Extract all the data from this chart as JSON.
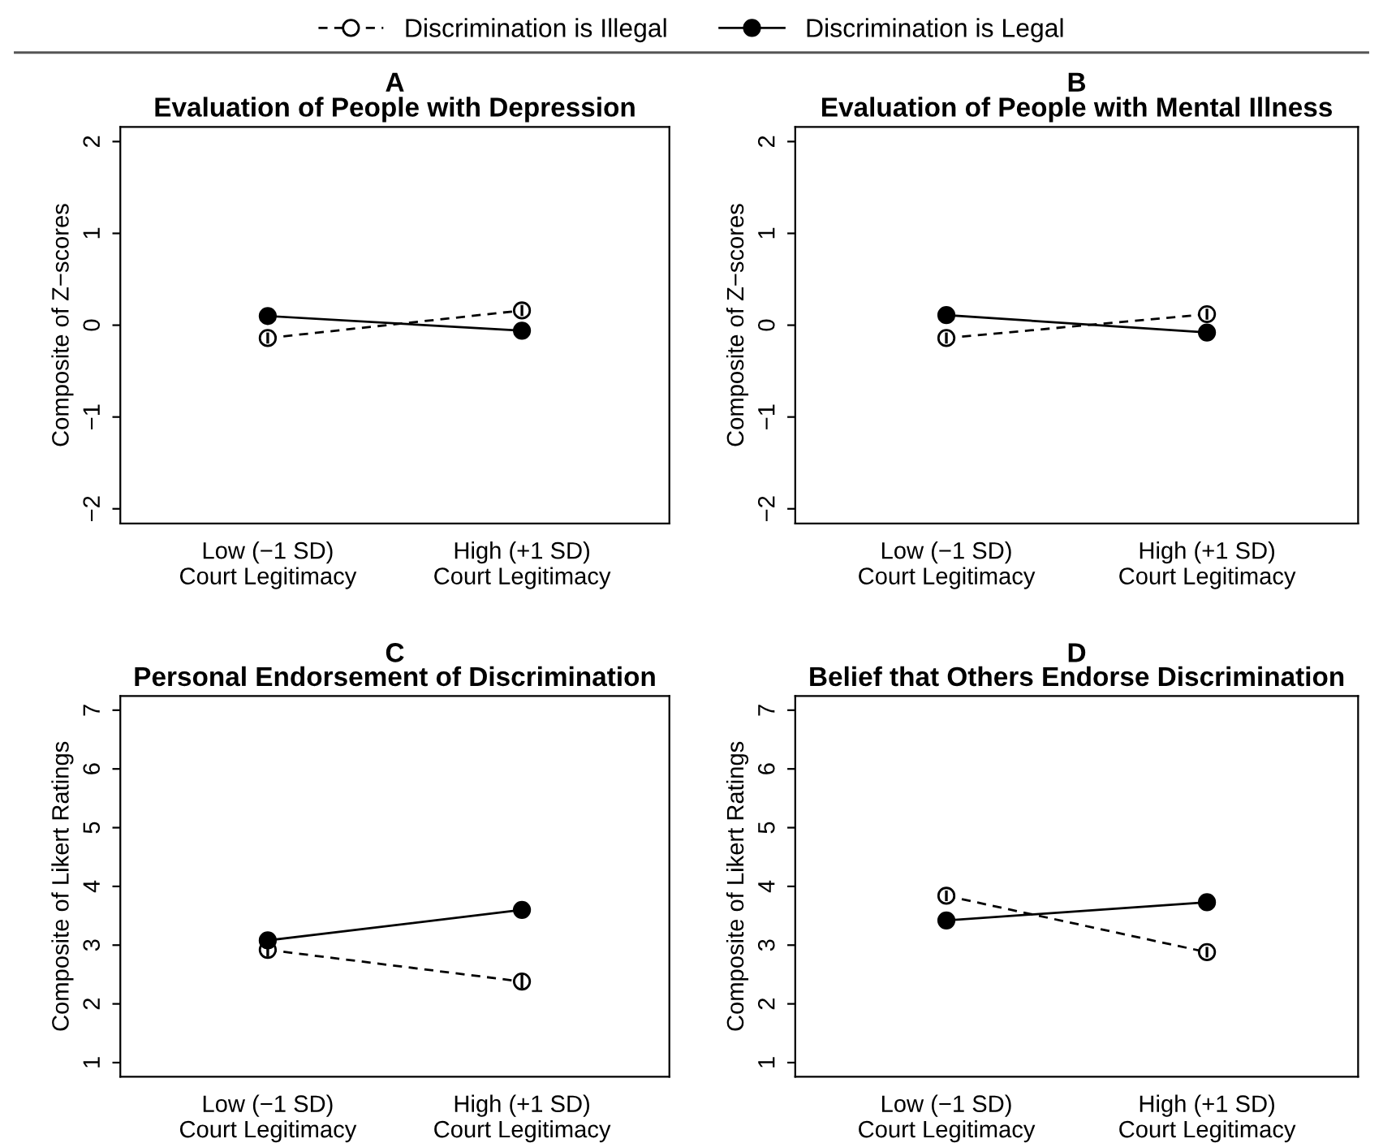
{
  "chart_data": [
    {
      "type": "line",
      "title": "A",
      "subtitle": "Evaluation of People with Depression",
      "ylabel": "Composite of Z−scores",
      "categories": [
        "Low (−1 SD)\nCourt Legitimacy",
        "High (+1 SD)\nCourt Legitimacy"
      ],
      "ylim": [
        -2.16,
        2.16
      ],
      "yticks": [
        -2,
        -1,
        0,
        1,
        2
      ],
      "legend": "top",
      "marker": "circle",
      "grid": false,
      "series": [
        {
          "name": "Discrimination is Illegal",
          "color": "#000000",
          "line_style": "dashed",
          "values": [
            -0.14,
            0.16
          ],
          "errors": [
            0.06,
            0.06
          ]
        },
        {
          "name": "Discrimination is Legal",
          "color": "#000000",
          "line_style": "solid",
          "values": [
            0.1,
            -0.06
          ],
          "errors": [
            0.06,
            0.06
          ]
        }
      ]
    },
    {
      "type": "line",
      "title": "B",
      "subtitle": "Evaluation of People with Mental Illness",
      "ylabel": "Composite of Z−scores",
      "categories": [
        "Low (−1 SD)\nCourt Legitimacy",
        "High (+1 SD)\nCourt Legitimacy"
      ],
      "ylim": [
        -2.16,
        2.16
      ],
      "yticks": [
        -2,
        -1,
        0,
        1,
        2
      ],
      "marker": "circle",
      "grid": false,
      "series": [
        {
          "color": "#000000",
          "line_style": "dashed",
          "values": [
            -0.14,
            0.12
          ],
          "errors": [
            0.06,
            0.06
          ]
        },
        {
          "color": "#000000",
          "line_style": "solid",
          "values": [
            0.11,
            -0.08
          ],
          "errors": [
            0.06,
            0.06
          ]
        }
      ]
    },
    {
      "type": "line",
      "title": "C",
      "subtitle": "Personal Endorsement of Discrimination",
      "ylabel": "Composite of Likert Ratings",
      "categories": [
        "Low (−1 SD)\nCourt Legitimacy",
        "High (+1 SD)\nCourt Legitimacy"
      ],
      "ylim": [
        0.76,
        7.24
      ],
      "yticks": [
        1,
        2,
        3,
        4,
        5,
        6,
        7
      ],
      "marker": "circle",
      "grid": false,
      "series": [
        {
          "color": "#000000",
          "line_style": "dashed",
          "values": [
            2.92,
            2.38
          ],
          "errors": [
            0.12,
            0.12
          ]
        },
        {
          "color": "#000000",
          "line_style": "solid",
          "values": [
            3.08,
            3.6
          ],
          "errors": [
            0.12,
            0.12
          ]
        }
      ]
    },
    {
      "type": "line",
      "title": "D",
      "subtitle": "Belief that Others Endorse Discrimination",
      "ylabel": "Composite of Likert Ratings",
      "categories": [
        "Low (−1 SD)\nCourt Legitimacy",
        "High (+1 SD)\nCourt Legitimacy"
      ],
      "ylim": [
        0.76,
        7.24
      ],
      "yticks": [
        1,
        2,
        3,
        4,
        5,
        6,
        7
      ],
      "marker": "circle",
      "grid": false,
      "series": [
        {
          "color": "#000000",
          "line_style": "dashed",
          "values": [
            3.84,
            2.88
          ],
          "errors": [
            0.09,
            0.09
          ]
        },
        {
          "color": "#000000",
          "line_style": "solid",
          "values": [
            3.42,
            3.73
          ],
          "errors": [
            0.09,
            0.09
          ]
        }
      ]
    }
  ]
}
